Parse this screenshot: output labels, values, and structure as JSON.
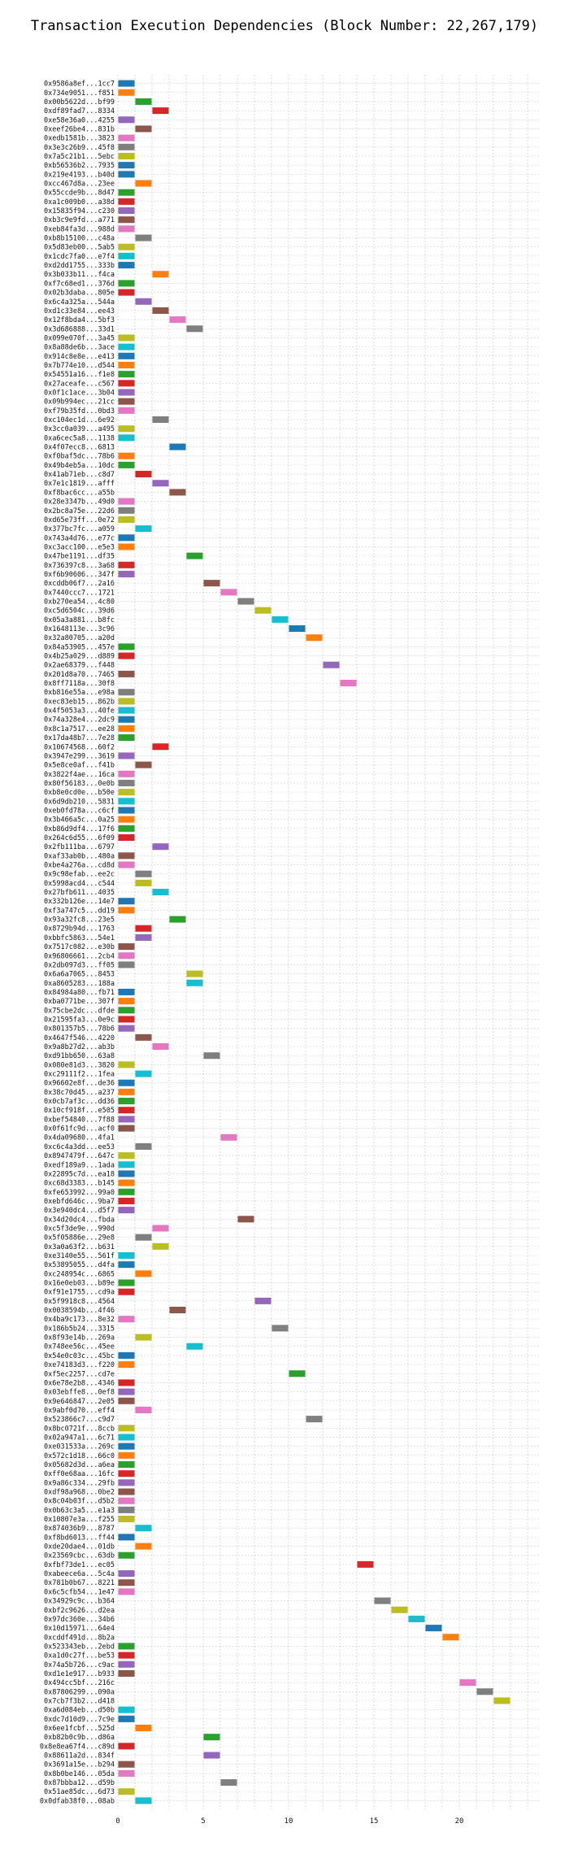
{
  "chart_data": {
    "type": "gantt",
    "title": "Transaction Execution Dependencies (Block Number: 22,267,179)",
    "xlabel": "",
    "ylabel": "",
    "xlim": [
      0,
      24
    ],
    "x_ticks": [
      0,
      5,
      10,
      15,
      20
    ],
    "grid": true,
    "bar_width": 1,
    "colors": [
      "#1f77b4",
      "#ff7f0e",
      "#2ca02c",
      "#d62728",
      "#9467bd",
      "#8c564b",
      "#e377c2",
      "#7f7f7f",
      "#bcbd22",
      "#17becf"
    ],
    "tx_labels": [
      "0x9586a8ef...1cc7",
      "0x734e9051...f851",
      "0x00b5622d...bf99",
      "0xdf89fad7...8334",
      "0xe58e36a0...4255",
      "0xeef26be4...831b",
      "0xedb1581b...3823",
      "0x3e3c26b9...45f8",
      "0x7a5c21b1...5ebc",
      "0xb56536b2...7935",
      "0x219e4193...b40d",
      "0xcc467d8a...23ee",
      "0x55ccde9b...8d47",
      "0xa1c009b0...a38d",
      "0x15835f94...c230",
      "0xb3c9e9fd...a771",
      "0xeb84fa3d...988d",
      "0xb8b15100...c48a",
      "0x5d83eb00...5ab5",
      "0x1cdc7fa0...e7f4",
      "0xd2dd1755...333b",
      "0x3b033b11...f4ca",
      "0xf7c68ed1...376d",
      "0x02b3daba...805e",
      "0x6c4a325a...544a",
      "0xd1c33e84...ee43",
      "0x12f8bda4...5bf3",
      "0x3d686888...33d1",
      "0x099e070f...3a45",
      "0x8a88de6b...3ace",
      "0x914c8e8e...e413",
      "0x7b774e10...d544",
      "0x54551a16...f1e8",
      "0x27aceafe...c567",
      "0x0f1c1ace...3b04",
      "0x09b994ec...21cc",
      "0xf79b35fd...0bd3",
      "0xc104ec1d...6e92",
      "0x3cc0a039...a495",
      "0xa6cec5a8...1138",
      "0x4f07ecc8...6813",
      "0xf0baf5dc...78b6",
      "0x49b4eb5a...10dc",
      "0x41ab71eb...c8d7",
      "0x7e1c1819...afff",
      "0xf8bac6cc...a55b",
      "0x28e3347b...49d0",
      "0x2bc8a75e...22d6",
      "0xd65e73ff...0e72",
      "0x377bc7fc...a059",
      "0x743a4d76...e77c",
      "0xc3acc100...e5e3",
      "0x47be1191...df35",
      "0x736397c8...3a68",
      "0xf6b90606...347f",
      "0xcddb06f7...2a16",
      "0x7440ccc7...1721",
      "0xb270ea54...4c80",
      "0xc5d6504c...39d6",
      "0x05a3a881...b8fc",
      "0x1648113e...3c96",
      "0x32a80705...a20d",
      "0x84a53905...457e",
      "0x4b25a029...d889",
      "0x2ae68379...f448",
      "0x201d8a70...7465",
      "0x8ff7118a...30f8",
      "0xb816e55a...e98a",
      "0xec83eb15...862b",
      "0x4f5053a3...40fe",
      "0x74a328e4...2dc9",
      "0x8c1a7517...ee28",
      "0x17da48b7...7e28",
      "0x10674568...60f2",
      "0x3947e299...3619",
      "0x5e8ce0af...f41b",
      "0x3822f4ae...16ca",
      "0x80f56183...0e0b",
      "0xb8e0cd0e...b50e",
      "0x6d9db210...5831",
      "0xeb0fd78a...c6cf",
      "0x3b466a5c...0a25",
      "0xb86d9df4...17f6",
      "0x264c6d55...6f09",
      "0x2fb111ba...6797",
      "0xaf33ab0b...480a",
      "0xbe4a276a...cd8d",
      "0x9c98efab...ee2c",
      "0x5998acd4...c544",
      "0x27bfb611...4035",
      "0x332b126e...14e7",
      "0xf3a747c5...dd19",
      "0x93a32fc8...23e5",
      "0x8729b94d...1763",
      "0xbbfc5863...54e1",
      "0x7517c082...e30b",
      "0x96806661...2cb4",
      "0x2db097d3...ff05",
      "0x6a6a7065...8453",
      "0xa8605283...188a",
      "0x84984a80...fb71",
      "0xba0771be...307f",
      "0x75cbe2dc...dfde",
      "0x21595fa3...0e9c",
      "0x801357b5...78b6",
      "0x4647f546...4220",
      "0x9a8b27d2...ab3b",
      "0xd91bb650...63a8",
      "0x080e81d3...3820",
      "0xc29111f2...1fea",
      "0x96602e8f...de36",
      "0x38c70d45...a237",
      "0x0cb7af3c...dd36",
      "0x10cf918f...e505",
      "0xbef54840...7f88",
      "0x0f61fc9d...acf0",
      "0x4da09680...4fa1",
      "0xc6c4a3dd...ee53",
      "0x8947479f...647c",
      "0xedf189a9...1ada",
      "0x22895c7d...ea18",
      "0xc68d3383...b145",
      "0xfe653992...99a0",
      "0xebfd646c...9ba7",
      "0x3e940dc4...d5f7",
      "0x34d20dc4...fbda",
      "0xc5f3de9e...990d",
      "0x5f05886e...29e8",
      "0x3a0a63f2...b631",
      "0xe3140e55...561f",
      "0x53895055...d4fa",
      "0xc248954c...6865",
      "0x16e0eb03...b89e",
      "0xf91e1755...cd9a",
      "0x5f9918c8...4564",
      "0x0038594b...4f46",
      "0x4ba9c173...8e32",
      "0x186b5b24...3315",
      "0x8f93e14b...269a",
      "0x748ee56c...45ee",
      "0x54e0c03c...45bc",
      "0xe74183d3...f220",
      "0xf5ec2257...cd7e",
      "0x6e78e2b8...4346",
      "0x03ebffe8...0ef8",
      "0x9e646847...2e05",
      "0x9abf0d70...eff4",
      "0x523866c7...c9d7",
      "0x8bc0721f...8ccb",
      "0x02a947a1...6c71",
      "0xe031533a...269c",
      "0x572c1d18...66c0",
      "0x05682d3d...a6ea",
      "0xff0e68aa...16fc",
      "0x9a86c334...29fb",
      "0xdf98a968...0be2",
      "0x8c04b03f...d5b2",
      "0x0b63c3a5...e1a3",
      "0x10807e3a...f255",
      "0x874036b9...8787",
      "0xf8bd6013...ff44",
      "0xde20dae4...01db",
      "0x23569cbc...63db",
      "0xfbf73de1...ec05",
      "0xabeece6a...5c4a",
      "0x781b0b67...8221",
      "0x6c5cfb54...1e47",
      "0x34929c9c...b364",
      "0xbf2c9626...d2ea",
      "0x97dc360e...34b6",
      "0x10d15971...64e4",
      "0xcddf491d...8b2a",
      "0x523343eb...2ebd",
      "0xa1d0c27f...be53",
      "0x74a5b726...c9ac",
      "0xd1e1e917...b933",
      "0x494cc5bf...216c",
      "0x87806299...090a",
      "0x7cb7f3b2...d418",
      "0xa6d084eb...d50b",
      "0xdc7d10d9...7c9e",
      "0x6ee1fcbf...525d",
      "0xb82b0c9b...d86a",
      "0x8e8ea67f4...c89d",
      "0x88611a2d...834f",
      "0x3691a15e...b294",
      "0x8b0be146...05da",
      "0x87bbba12...d59b",
      "0x51ae85dc...6d73",
      "0x0dfab38f0...08ab"
    ],
    "start_times": [
      0,
      0,
      1,
      2,
      0,
      1,
      0,
      0,
      0,
      0,
      0,
      1,
      0,
      0,
      0,
      0,
      0,
      1,
      0,
      0,
      0,
      2,
      0,
      0,
      1,
      2,
      3,
      4,
      0,
      0,
      0,
      0,
      0,
      0,
      0,
      0,
      0,
      2,
      0,
      0,
      3,
      0,
      0,
      1,
      2,
      3,
      0,
      0,
      0,
      1,
      0,
      0,
      4,
      0,
      0,
      5,
      6,
      7,
      8,
      9,
      10,
      11,
      0,
      0,
      12,
      0,
      13,
      0,
      0,
      0,
      0,
      0,
      0,
      2,
      0,
      1,
      0,
      0,
      0,
      0,
      0,
      0,
      0,
      0,
      2,
      0,
      0,
      1,
      1,
      2,
      0,
      0,
      3,
      1,
      1,
      0,
      0,
      0,
      4,
      4,
      0,
      0,
      0,
      0,
      0,
      1,
      2,
      5,
      0,
      1,
      0,
      0,
      0,
      0,
      0,
      0,
      6,
      1,
      0,
      0,
      0,
      0,
      0,
      0,
      0,
      7,
      2,
      1,
      2,
      0,
      0,
      1,
      0,
      0,
      8,
      3,
      0,
      9,
      1,
      4,
      0,
      0,
      10,
      0,
      0,
      0,
      1,
      11,
      0,
      0,
      0,
      0,
      0,
      0,
      0,
      0,
      0,
      0,
      0,
      1,
      0,
      1,
      0,
      14,
      0,
      0,
      0,
      15,
      16,
      17,
      18,
      19,
      0,
      0,
      0,
      0,
      20,
      21,
      22,
      0,
      0,
      1,
      5,
      0,
      5,
      0,
      0,
      6,
      0,
      1
    ],
    "colors_by_index": [
      0,
      1,
      2,
      3,
      4,
      5,
      6,
      7,
      8,
      0,
      0,
      1,
      2,
      3,
      4,
      5,
      6,
      7,
      8,
      9,
      0,
      1,
      2,
      3,
      4,
      5,
      6,
      7,
      8,
      9,
      0,
      1,
      2,
      3,
      4,
      5,
      6,
      7,
      8,
      9,
      0,
      1,
      2,
      3,
      4,
      5,
      6,
      7,
      8,
      9,
      0,
      1,
      2,
      3,
      4,
      5,
      6,
      7,
      8,
      9,
      0,
      1,
      2,
      3,
      4,
      5,
      6,
      7,
      8,
      9,
      0,
      1,
      2,
      3,
      4,
      5,
      6,
      7,
      8,
      9,
      0,
      1,
      2,
      3,
      4,
      5,
      6,
      7,
      8,
      9,
      0,
      1,
      2,
      3,
      4,
      5,
      6,
      7,
      8,
      9,
      0,
      1,
      2,
      3,
      4,
      5,
      6,
      7,
      8,
      9,
      0,
      1,
      2,
      3,
      4,
      5,
      6,
      7,
      8,
      9,
      0,
      1,
      2,
      3,
      4,
      5,
      6,
      7,
      8,
      9,
      0,
      1,
      2,
      3,
      4,
      5,
      6,
      7,
      8,
      9,
      0,
      1,
      2,
      3,
      4,
      5,
      6,
      7,
      8,
      9,
      0,
      1,
      2,
      3,
      4,
      5,
      6,
      7,
      8,
      9,
      0,
      1,
      2,
      3,
      4,
      5,
      6,
      7,
      8,
      9,
      0,
      1,
      2,
      3,
      4,
      5,
      6,
      7,
      8,
      9,
      0,
      1,
      2,
      3,
      4,
      5,
      6,
      7,
      8,
      9,
      0,
      1
    ]
  }
}
